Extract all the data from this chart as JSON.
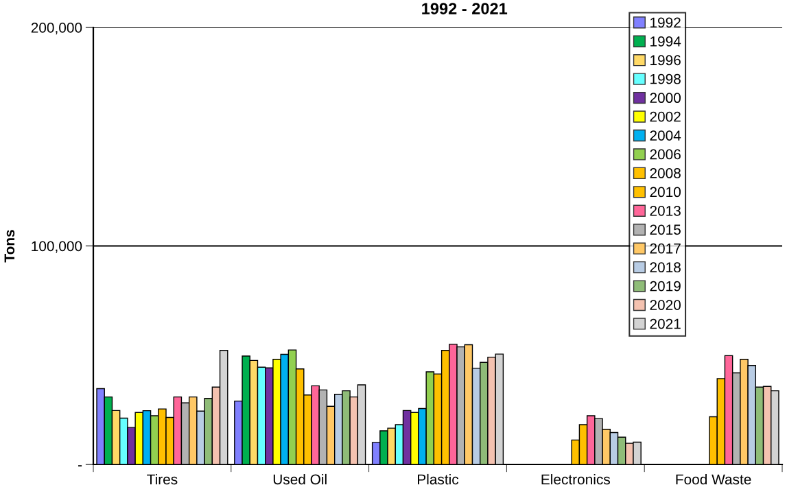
{
  "chart_data": {
    "type": "bar",
    "title": "1992 - 2021",
    "ylabel": "Tons",
    "categories": [
      "Tires",
      "Used Oil",
      "Plastic",
      "Electronics",
      "Food Waste"
    ],
    "series": [
      {
        "name": "1992",
        "color": "#8080ff",
        "values": [
          34700,
          29000,
          10100,
          0,
          0
        ]
      },
      {
        "name": "1994",
        "color": "#00b050",
        "values": [
          30900,
          49600,
          15400,
          0,
          0
        ]
      },
      {
        "name": "1996",
        "color": "#ffd966",
        "values": [
          24700,
          47600,
          16600,
          0,
          0
        ]
      },
      {
        "name": "1998",
        "color": "#66ffff",
        "values": [
          21200,
          44500,
          18200,
          0,
          0
        ]
      },
      {
        "name": "2000",
        "color": "#7030a0",
        "values": [
          16900,
          44200,
          24700,
          0,
          0
        ]
      },
      {
        "name": "2002",
        "color": "#ffff00",
        "values": [
          23800,
          48100,
          23800,
          0,
          0
        ]
      },
      {
        "name": "2004",
        "color": "#00b0f0",
        "values": [
          24600,
          50400,
          25600,
          0,
          0
        ]
      },
      {
        "name": "2006",
        "color": "#92d050",
        "values": [
          22300,
          52400,
          42400,
          0,
          0
        ]
      },
      {
        "name": "2008",
        "color": "#ffc000",
        "values": [
          25400,
          43700,
          41400,
          11200,
          21800
        ]
      },
      {
        "name": "2010",
        "color": "#ffc000",
        "values": [
          21500,
          31800,
          52200,
          18200,
          39300
        ]
      },
      {
        "name": "2013",
        "color": "#ff6699",
        "values": [
          30900,
          36000,
          55000,
          22300,
          49800
        ]
      },
      {
        "name": "2015",
        "color": "#b2b2b2",
        "values": [
          28200,
          34100,
          53800,
          21000,
          41900
        ]
      },
      {
        "name": "2017",
        "color": "#ffc866",
        "values": [
          30900,
          26600,
          54800,
          16100,
          48100
        ]
      },
      {
        "name": "2018",
        "color": "#b8cce4",
        "values": [
          24400,
          32100,
          44000,
          14600,
          45300
        ]
      },
      {
        "name": "2019",
        "color": "#8fbc78",
        "values": [
          30200,
          33700,
          46700,
          12500,
          35400
        ]
      },
      {
        "name": "2020",
        "color": "#f4c2b0",
        "values": [
          35400,
          30900,
          49100,
          9700,
          35700
        ]
      },
      {
        "name": "2021",
        "color": "#d3d3d3",
        "values": [
          52200,
          36400,
          50500,
          10200,
          33700
        ]
      }
    ],
    "ylim": [
      0,
      200000
    ],
    "yticks": [
      {
        "value": 0,
        "label": "-"
      },
      {
        "value": 100000,
        "label": "100,000"
      },
      {
        "value": 200000,
        "label": "200,000"
      }
    ],
    "grid": "y",
    "legend": "top right"
  }
}
